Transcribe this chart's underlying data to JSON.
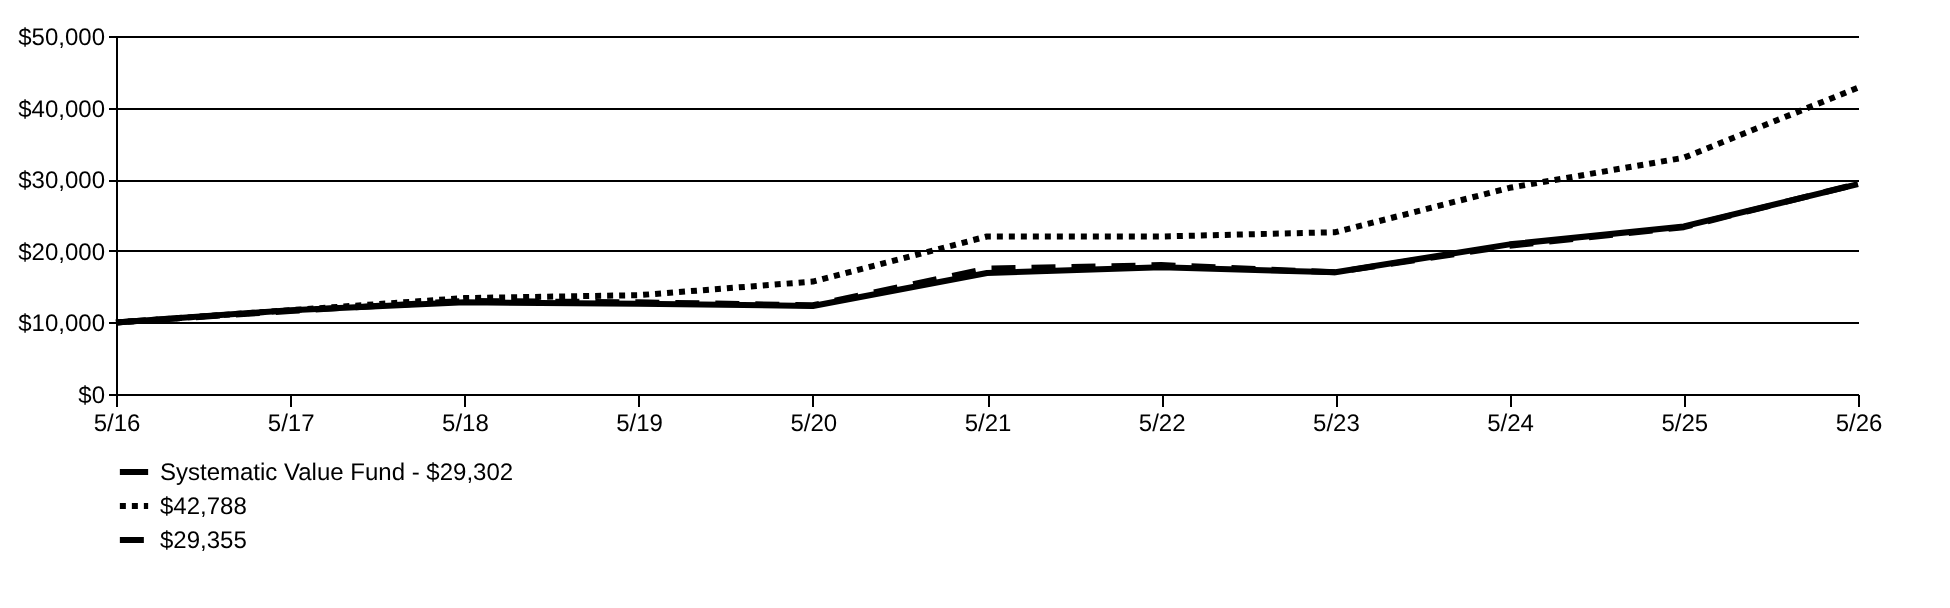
{
  "chart_data": {
    "type": "line",
    "categories": [
      "5/16",
      "5/17",
      "5/18",
      "5/19",
      "5/20",
      "5/21",
      "5/22",
      "5/23",
      "5/24",
      "5/25",
      "5/26"
    ],
    "series": [
      {
        "name": "Systematic Value Fund - $29,302",
        "color": "#000000",
        "line_style": "solid",
        "values": [
          10000,
          11700,
          12800,
          12600,
          12300,
          16900,
          17700,
          17000,
          20900,
          23400,
          29302
        ]
      },
      {
        "name": "$42,788",
        "color": "#000000",
        "line_style": "dotted",
        "values": [
          10000,
          11700,
          13400,
          13800,
          15700,
          22000,
          22000,
          22600,
          28800,
          33000,
          42788
        ]
      },
      {
        "name": "$29,355",
        "color": "#000000",
        "line_style": "dashed",
        "values": [
          10000,
          11600,
          13000,
          12800,
          12400,
          17500,
          18000,
          17000,
          20700,
          23300,
          29355
        ]
      }
    ],
    "ylim": [
      0,
      50000
    ],
    "yticks": [
      {
        "value": 0,
        "label": "$0"
      },
      {
        "value": 10000,
        "label": "$10,000"
      },
      {
        "value": 20000,
        "label": "$20,000"
      },
      {
        "value": 30000,
        "label": "$30,000"
      },
      {
        "value": 40000,
        "label": "$40,000"
      },
      {
        "value": 50000,
        "label": "$50,000"
      }
    ],
    "grid": "y",
    "legend": "bottom",
    "marker": "none"
  }
}
